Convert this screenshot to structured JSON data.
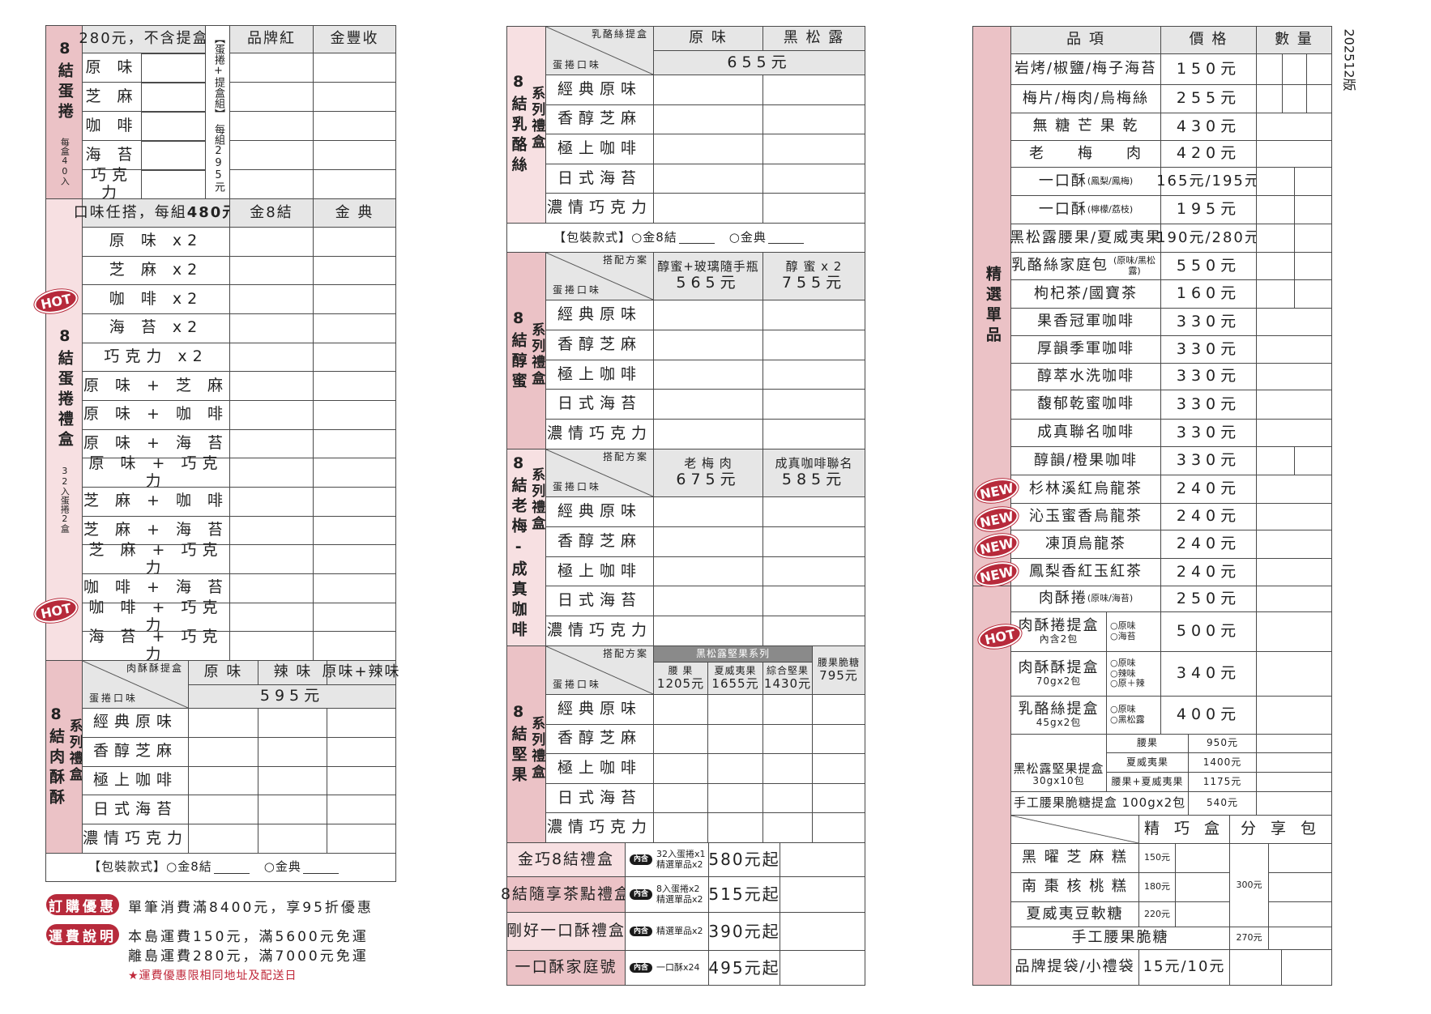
{
  "version": "202512版",
  "colors": {
    "pink_dark": "#ebc2c6",
    "pink_light": "#f7e0e2",
    "header_gray": "#e6e6e6",
    "badge_red": "#b72a3b"
  },
  "left": {
    "egg_roll": {
      "title": "8結蛋捲",
      "count_note": "每盒40入",
      "price_note": "280元，不含提盒",
      "set_label": "【蛋捲+提盒組】",
      "set_price": "每組295元",
      "columns": [
        "品牌紅",
        "金豐收"
      ],
      "flavors": [
        "原 味",
        "芝 麻",
        "咖 啡",
        "海 苔",
        "巧克力"
      ]
    },
    "gift_box": {
      "title": "8結蛋捲禮盒",
      "badge": "HOT",
      "count_note": "32入蛋捲2盒",
      "header_text": "口味任搭，每組",
      "header_price": "480元",
      "columns": [
        "金8結",
        "金 典"
      ],
      "combos": [
        "原 味 x2",
        "芝 麻 x2",
        "咖 啡 x2",
        "海 苔 x2",
        "巧克力 x2",
        "原 味 + 芝 麻",
        "原 味 + 咖 啡",
        "原 味 + 海 苔",
        "原 味 + 巧克力",
        "芝 麻 + 咖 啡",
        "芝 麻 + 海 苔",
        "芝 麻 + 巧克力",
        "咖 啡 + 海 苔",
        "咖 啡 + 巧克力",
        "海 苔 + 巧克力"
      ]
    },
    "meat_floss": {
      "title": "8結肉酥酥",
      "subtitle": "系列禮盒",
      "badge": "HOT",
      "corner_top": "肉酥酥提盒",
      "corner_bottom": "蛋捲口味",
      "columns": [
        "原 味",
        "辣 味",
        "原味+辣味"
      ],
      "price": "595元",
      "packaging": {
        "label": "【包裝款式】",
        "option1": "○金8結",
        "option2": "○金典"
      }
    },
    "promo": {
      "discount_badge": "訂購優惠",
      "discount_text": "單筆消費滿8400元，享95折優惠",
      "shipping_badge": "運費說明",
      "shipping_lines": [
        "本島運費150元，滿5600元免運",
        "離島運費280元，滿7000元免運"
      ],
      "shipping_note": "★運費優惠限相同地址及配送日"
    }
  },
  "middle": {
    "flavors": [
      "經典原味",
      "香醇芝麻",
      "極上咖啡",
      "日式海苔",
      "濃情巧克力"
    ],
    "cheese": {
      "title": "8結乳酪絲",
      "subtitle": "系列禮盒",
      "corner_top": "乳酪絲提盒",
      "corner_bottom": "蛋捲口味",
      "columns": [
        "原 味",
        "黑 松 露"
      ],
      "price": "655元",
      "packaging": {
        "label": "【包裝款式】",
        "option1": "○金8結",
        "option2": "○金典"
      }
    },
    "honey": {
      "title": "8結醇蜜",
      "subtitle": "系列禮盒",
      "corner_top": "搭配方案",
      "corner_bottom": "蛋捲口味",
      "columns": [
        {
          "name": "醇蜜+玻璃隨手瓶",
          "price": "565元"
        },
        {
          "name": "醇 蜜 x 2",
          "price": "755元"
        }
      ]
    },
    "plum_coffee": {
      "title": "8結老梅-成真咖啡",
      "subtitle": "系列禮盒",
      "corner_top": "搭配方案",
      "corner_bottom": "蛋捲口味",
      "columns": [
        {
          "name": "老 梅 肉",
          "price": "675元"
        },
        {
          "name": "成真咖啡聯名",
          "price": "585元"
        }
      ]
    },
    "nuts": {
      "title": "8結堅果",
      "subtitle": "系列禮盒",
      "corner_top": "搭配方案",
      "corner_bottom": "蛋捲口味",
      "group": "黑松露堅果系列",
      "columns": [
        {
          "name": "腰 果",
          "price": "1205元"
        },
        {
          "name": "夏威夷果",
          "price": "1655元"
        },
        {
          "name": "綜合堅果",
          "price": "1430元"
        },
        {
          "name": "腰果脆糖",
          "price": "795元"
        }
      ]
    },
    "combos": [
      {
        "name": "金巧8結禮盒",
        "tag": "內含",
        "contents": [
          "32入蛋捲x1",
          "精選單品x2"
        ],
        "price": "580元起"
      },
      {
        "name": "8結隨享茶點禮盒",
        "tag": "內含",
        "contents": [
          "8入蛋捲x2",
          "精選單品x2"
        ],
        "price": "515元起"
      },
      {
        "name": "剛好一口酥禮盒",
        "tag": "內含",
        "contents": [
          "精選單品x2"
        ],
        "price": "390元起"
      },
      {
        "name": "一口酥家庭號",
        "tag": "內含",
        "contents": [
          "一口酥x24"
        ],
        "price": "495元起"
      }
    ]
  },
  "right": {
    "title": "精選單品",
    "headers": [
      "品 項",
      "價 格",
      "數 量"
    ],
    "new_badge": "NEW",
    "hot_badge": "HOT",
    "items": [
      {
        "name": "岩烤/椒鹽/梅子海苔",
        "sub": "",
        "price": "150元"
      },
      {
        "name": "梅片/梅肉/烏梅絲",
        "sub": "",
        "price": "255元"
      },
      {
        "name": "無 糖 芒 果 乾",
        "sub": "",
        "price": "430元"
      },
      {
        "name": "老　　梅　　肉",
        "sub": "",
        "price": "420元"
      },
      {
        "name": "一口酥",
        "sub": "(鳳梨/鳳梅)",
        "price": "165元/195元"
      },
      {
        "name": "一口酥",
        "sub": "(檸檬/荔枝)",
        "price": "195元"
      },
      {
        "name": "黑松露腰果/夏威夷果",
        "sub": "",
        "price": "190元/280元"
      },
      {
        "name": "乳酪絲家庭包",
        "sub": "(原味/黑松露)",
        "price": "550元"
      },
      {
        "name": "枸杞茶/國寶茶",
        "sub": "",
        "price": "160元"
      },
      {
        "name": "果香冠軍咖啡",
        "sub": "",
        "price": "330元"
      },
      {
        "name": "厚韻季軍咖啡",
        "sub": "",
        "price": "330元"
      },
      {
        "name": "醇萃水洗咖啡",
        "sub": "",
        "price": "330元"
      },
      {
        "name": "馥郁乾蜜咖啡",
        "sub": "",
        "price": "330元"
      },
      {
        "name": "成真聯名咖啡",
        "sub": "",
        "price": "330元"
      },
      {
        "name": "醇韻/橙果咖啡",
        "sub": "",
        "price": "330元"
      },
      {
        "name": "杉林溪紅烏龍茶",
        "sub": "",
        "price": "240元",
        "badge": "NEW"
      },
      {
        "name": "沁玉蜜香烏龍茶",
        "sub": "",
        "price": "240元",
        "badge": "NEW"
      },
      {
        "name": "凍頂烏龍茶",
        "sub": "",
        "price": "240元",
        "badge": "NEW"
      },
      {
        "name": "鳳梨香紅玉紅茶",
        "sub": "",
        "price": "240元",
        "badge": "NEW"
      }
    ],
    "meat_roll": {
      "name": "肉酥捲",
      "sub": "(原味/海苔)",
      "price": "250元"
    },
    "boxes": [
      {
        "name": "肉酥捲提盒",
        "spec": "內含2包",
        "options": [
          "○原味",
          "○海苔"
        ],
        "price": "500元"
      },
      {
        "name": "肉酥酥提盒",
        "spec": "70gx2包",
        "options": [
          "○原味",
          "○辣味",
          "○原＋辣"
        ],
        "price": "340元"
      },
      {
        "name": "乳酪絲提盒",
        "spec": "45gx2包",
        "options": [
          "○原味",
          "○黑松露"
        ],
        "price": "400元"
      }
    ],
    "nut_box": {
      "name": "黑松露堅果提盒",
      "spec": "30gx10包",
      "variants": [
        {
          "name": "腰果",
          "price": "950元"
        },
        {
          "name": "夏威夷果",
          "price": "1400元"
        },
        {
          "name": "腰果+夏威夷果",
          "price": "1175元"
        }
      ]
    },
    "brittle_box": {
      "name": "手工腰果脆糖提盒 100gx2包",
      "price": "540元"
    },
    "candy": {
      "columns": [
        "精 巧 盒",
        "分 享 包"
      ],
      "items": [
        {
          "name": "黑 曜 芝 麻 糕",
          "price": "150元"
        },
        {
          "name": "南 棗 核 桃 糕",
          "price": "180元"
        },
        {
          "name": "夏威夷豆軟糖",
          "price": "220元"
        }
      ],
      "share_price": "300元"
    },
    "brittle": {
      "name": "手工腰果脆糖",
      "price": "270元"
    },
    "bags": {
      "name": "品牌提袋/小禮袋",
      "price": "15元/10元"
    }
  }
}
